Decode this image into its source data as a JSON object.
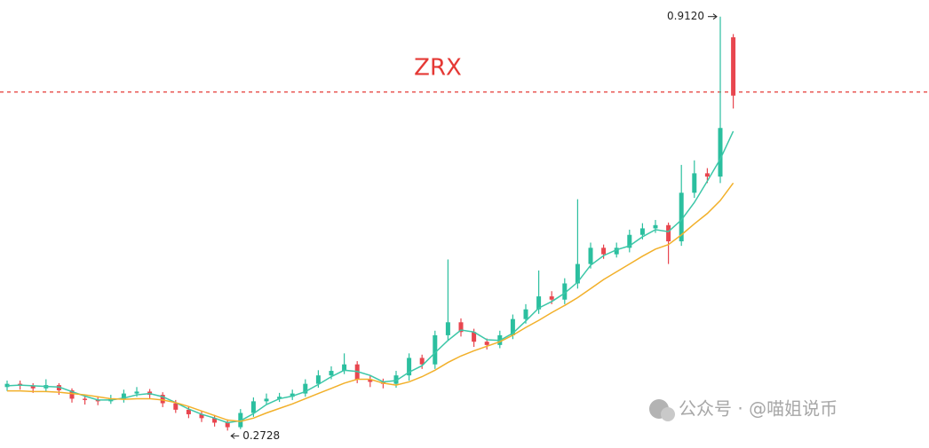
{
  "chart_data": {
    "type": "candlestick",
    "title": "ZRX",
    "open": [
      0.34,
      0.345,
      0.342,
      0.338,
      0.343,
      0.335,
      0.322,
      0.32,
      0.318,
      0.322,
      0.33,
      0.333,
      0.328,
      0.315,
      0.305,
      0.298,
      0.292,
      0.285,
      0.278,
      0.3,
      0.318,
      0.322,
      0.325,
      0.33,
      0.345,
      0.358,
      0.365,
      0.375,
      0.352,
      0.348,
      0.345,
      0.358,
      0.385,
      0.375,
      0.42,
      0.44,
      0.425,
      0.41,
      0.405,
      0.42,
      0.445,
      0.46,
      0.48,
      0.475,
      0.5,
      0.53,
      0.555,
      0.545,
      0.555,
      0.575,
      0.585,
      0.59,
      0.565,
      0.64,
      0.67,
      0.665,
      0.88
    ],
    "high": [
      0.35,
      0.35,
      0.346,
      0.352,
      0.346,
      0.338,
      0.327,
      0.324,
      0.328,
      0.336,
      0.34,
      0.337,
      0.332,
      0.32,
      0.31,
      0.303,
      0.297,
      0.29,
      0.306,
      0.324,
      0.33,
      0.331,
      0.336,
      0.352,
      0.366,
      0.372,
      0.392,
      0.38,
      0.358,
      0.353,
      0.365,
      0.392,
      0.39,
      0.427,
      0.537,
      0.446,
      0.43,
      0.415,
      0.427,
      0.452,
      0.468,
      0.52,
      0.488,
      0.508,
      0.63,
      0.563,
      0.56,
      0.563,
      0.583,
      0.593,
      0.598,
      0.594,
      0.683,
      0.69,
      0.678,
      0.912,
      0.885
    ],
    "low": [
      0.334,
      0.336,
      0.331,
      0.333,
      0.328,
      0.316,
      0.313,
      0.312,
      0.314,
      0.316,
      0.325,
      0.322,
      0.309,
      0.3,
      0.292,
      0.286,
      0.279,
      0.2728,
      0.275,
      0.294,
      0.313,
      0.317,
      0.32,
      0.325,
      0.339,
      0.352,
      0.36,
      0.346,
      0.34,
      0.338,
      0.339,
      0.35,
      0.368,
      0.368,
      0.412,
      0.418,
      0.402,
      0.398,
      0.4,
      0.414,
      0.438,
      0.453,
      0.468,
      0.468,
      0.492,
      0.523,
      0.538,
      0.54,
      0.548,
      0.568,
      0.578,
      0.53,
      0.558,
      0.632,
      0.655,
      0.655,
      0.77
    ],
    "close": [
      0.345,
      0.342,
      0.338,
      0.343,
      0.335,
      0.322,
      0.32,
      0.318,
      0.322,
      0.33,
      0.333,
      0.328,
      0.315,
      0.305,
      0.298,
      0.292,
      0.285,
      0.278,
      0.3,
      0.318,
      0.322,
      0.325,
      0.33,
      0.345,
      0.358,
      0.365,
      0.375,
      0.352,
      0.348,
      0.345,
      0.358,
      0.385,
      0.375,
      0.42,
      0.44,
      0.425,
      0.41,
      0.405,
      0.42,
      0.445,
      0.46,
      0.48,
      0.475,
      0.5,
      0.53,
      0.555,
      0.545,
      0.555,
      0.575,
      0.585,
      0.59,
      0.565,
      0.64,
      0.67,
      0.665,
      0.74,
      0.79
    ],
    "up_color": "#2bbf9f",
    "down_color": "#e8464f",
    "moving_averages": [
      {
        "color": "#3cc7a8",
        "values": [
          0.342,
          0.343,
          0.342,
          0.341,
          0.34,
          0.333,
          0.326,
          0.32,
          0.32,
          0.323,
          0.328,
          0.33,
          0.325,
          0.316,
          0.306,
          0.298,
          0.292,
          0.285,
          0.288,
          0.299,
          0.313,
          0.322,
          0.326,
          0.333,
          0.344,
          0.356,
          0.366,
          0.364,
          0.358,
          0.348,
          0.35,
          0.363,
          0.373,
          0.393,
          0.412,
          0.428,
          0.425,
          0.413,
          0.412,
          0.423,
          0.442,
          0.462,
          0.472,
          0.485,
          0.502,
          0.528,
          0.543,
          0.552,
          0.558,
          0.572,
          0.583,
          0.58,
          0.598,
          0.625,
          0.658,
          0.692,
          0.735
        ]
      },
      {
        "color": "#f2b02a",
        "values": [
          0.334,
          0.334,
          0.333,
          0.333,
          0.332,
          0.33,
          0.328,
          0.325,
          0.322,
          0.321,
          0.322,
          0.322,
          0.32,
          0.316,
          0.31,
          0.303,
          0.296,
          0.289,
          0.287,
          0.292,
          0.3,
          0.307,
          0.314,
          0.322,
          0.33,
          0.338,
          0.346,
          0.352,
          0.352,
          0.346,
          0.343,
          0.348,
          0.356,
          0.366,
          0.378,
          0.388,
          0.396,
          0.403,
          0.41,
          0.42,
          0.432,
          0.443,
          0.455,
          0.466,
          0.478,
          0.492,
          0.506,
          0.518,
          0.53,
          0.542,
          0.553,
          0.56,
          0.575,
          0.592,
          0.608,
          0.628,
          0.655
        ]
      }
    ],
    "reference_line": {
      "value": 0.7955,
      "color": "#e53935"
    },
    "high_label": {
      "value": 0.912,
      "label": "0.9120"
    },
    "low_label": {
      "value": 0.2728,
      "label": "0.2728"
    },
    "ylim": [
      0.2459,
      0.9376
    ]
  },
  "watermark": "公众号 · @喵姐说币"
}
